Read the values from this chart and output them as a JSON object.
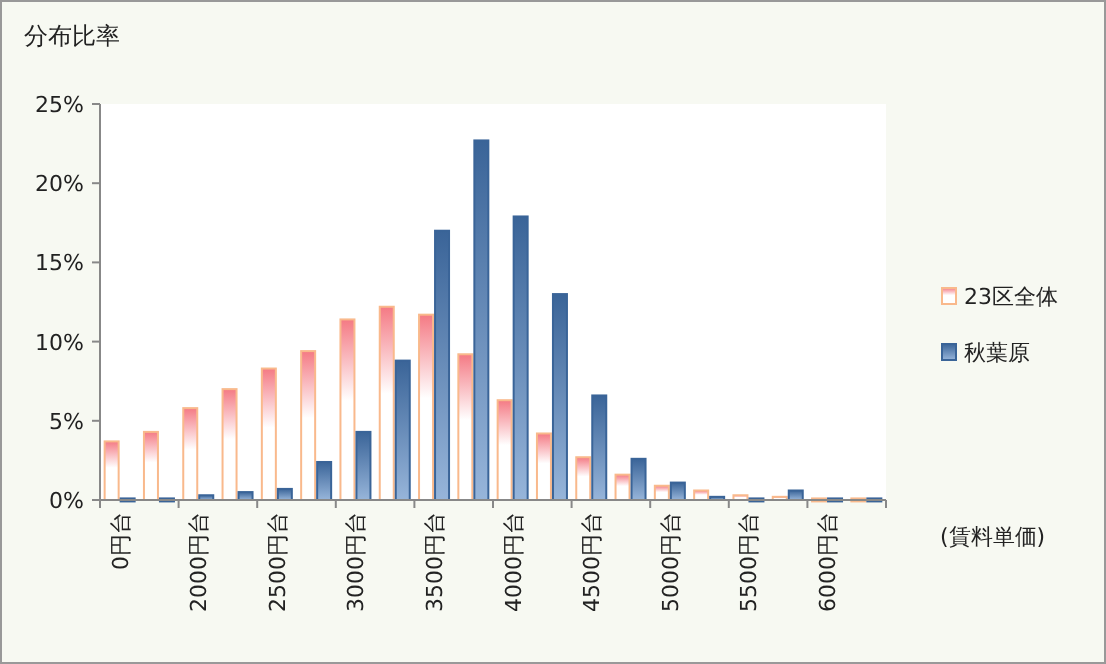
{
  "chart_data": {
    "type": "bar",
    "title": "分布比率",
    "xlabel": "(賃料単価)",
    "categories": [
      "0円台",
      null,
      "2000円台",
      null,
      "2500円台",
      null,
      "3000円台",
      null,
      "3500円台",
      null,
      "4000円台",
      null,
      "4500円台",
      null,
      "5000円台",
      null,
      "5500円台",
      null,
      "6000円台",
      null
    ],
    "series": [
      {
        "name": "23区全体",
        "color": "#f9b98c",
        "values": [
          3.7,
          4.3,
          5.8,
          7.0,
          8.3,
          9.4,
          11.4,
          12.2,
          11.7,
          9.2,
          6.3,
          4.2,
          2.7,
          1.6,
          0.9,
          0.6,
          0.3,
          0.2,
          0.1,
          0.1
        ]
      },
      {
        "name": "秋葉原",
        "color": "#3a6498",
        "values": [
          0.1,
          0.1,
          0.3,
          0.5,
          0.7,
          2.4,
          4.3,
          8.8,
          17.0,
          22.7,
          17.9,
          13.0,
          6.6,
          2.6,
          1.1,
          0.2,
          0.1,
          0.6,
          0.1,
          0.1
        ]
      }
    ],
    "ylim": [
      0,
      25
    ],
    "yticks": [
      {
        "value": 0,
        "label": "0%"
      },
      {
        "value": 5,
        "label": "5%"
      },
      {
        "value": 10,
        "label": "10%"
      },
      {
        "value": 15,
        "label": "15%"
      },
      {
        "value": 20,
        "label": "20%"
      },
      {
        "value": 25,
        "label": "25%"
      }
    ],
    "grid": false,
    "legend": "right"
  }
}
